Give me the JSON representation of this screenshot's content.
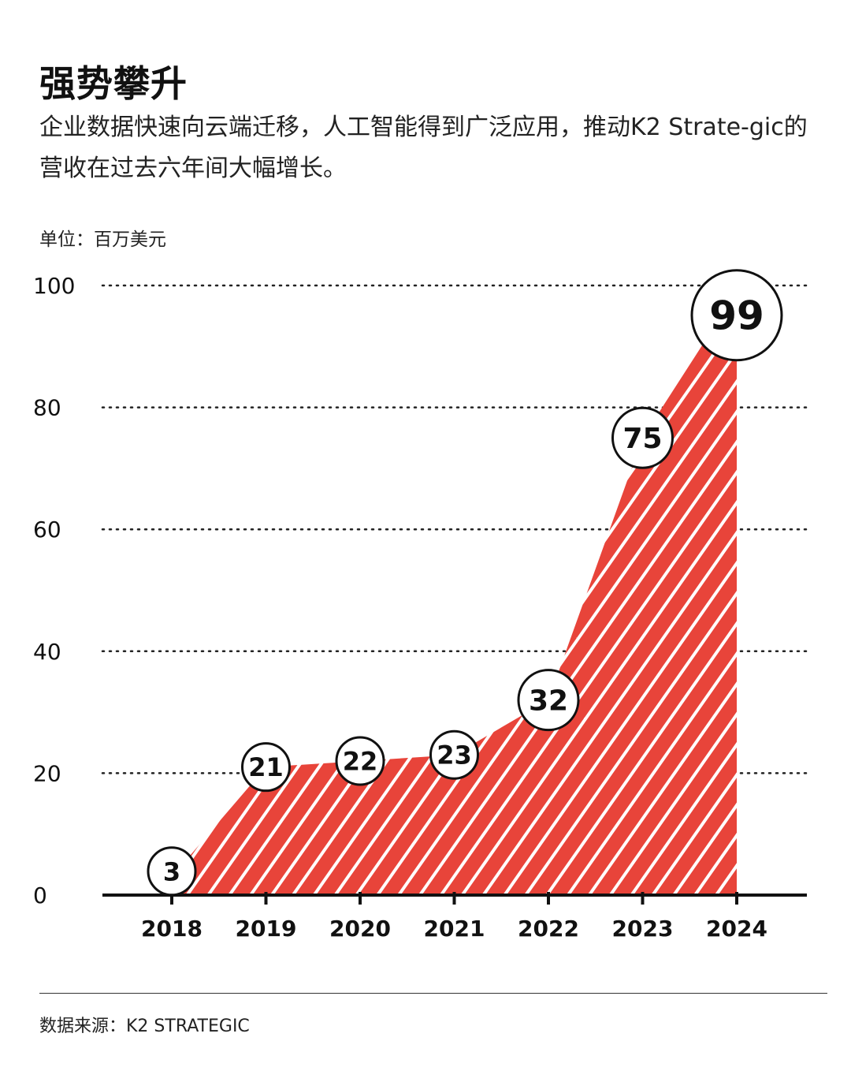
{
  "header": {
    "title": "强势攀升",
    "subtitle": "企业数据快速向云端迁移，人工智能得到广泛应用，推动K2 Strate-gic的营收在过去六年间大幅增长。"
  },
  "unit_label": "单位：百万美元",
  "footer": {
    "source": "数据来源：K2 STRATEGIC"
  },
  "colors": {
    "fill": "#e8443a",
    "stripe": "#ffffff",
    "axis": "#111111",
    "grid": "#222222"
  },
  "chart_data": {
    "type": "area",
    "title": "强势攀升",
    "xlabel": "",
    "ylabel": "单位：百万美元",
    "categories": [
      "2018",
      "2019",
      "2020",
      "2021",
      "2022",
      "2023",
      "2024"
    ],
    "values": [
      3,
      21,
      22,
      23,
      32,
      75,
      99
    ],
    "ylim": [
      0,
      100
    ],
    "yticks": [
      0,
      20,
      40,
      60,
      80,
      100
    ],
    "grid": true,
    "fill_pattern": "diagonal-stripes"
  }
}
